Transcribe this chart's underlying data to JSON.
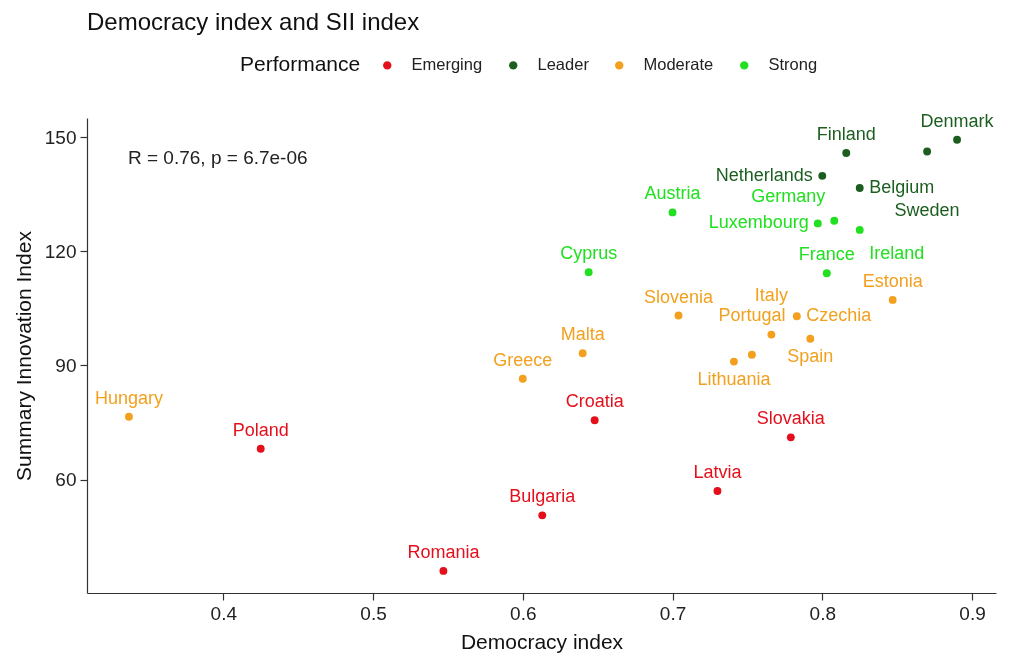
{
  "chart_data": {
    "type": "scatter",
    "title": "Democracy index and SII index",
    "xlabel": "Democracy index",
    "ylabel": "Summary Innovation Index",
    "legend_title": "Performance",
    "legend": "top",
    "marker": "circle",
    "xlim": [
      0.309,
      0.916
    ],
    "xticks": [
      0.4,
      0.5,
      0.6,
      0.7,
      0.8,
      0.9
    ],
    "ylim": [
      30.2,
      155
    ],
    "yticks": [
      60,
      90,
      120,
      150
    ],
    "series": [
      {
        "name": "Emerging",
        "color": "#e3101c",
        "x": [
          0.425,
          0.547,
          0.613,
          0.648,
          0.73,
          0.779
        ],
        "values": [
          68.1,
          36.0,
          50.6,
          75.6,
          57.0,
          71.1
        ]
      },
      {
        "name": "Leader",
        "color": "#1b5e20",
        "x": [
          0.8,
          0.816,
          0.825,
          0.87,
          0.89
        ],
        "values": [
          139.8,
          145.8,
          136.6,
          146.2,
          149.3
        ]
      },
      {
        "name": "Moderate",
        "color": "#f2a01e",
        "x": [
          0.337,
          0.6,
          0.64,
          0.704,
          0.741,
          0.753,
          0.766,
          0.783,
          0.792,
          0.847
        ],
        "values": [
          76.5,
          86.5,
          93.2,
          103.1,
          91.0,
          92.8,
          98.1,
          102.9,
          97.0,
          107.2
        ]
      },
      {
        "name": "Strong",
        "color": "#20e020",
        "x": [
          0.7,
          0.644,
          0.797,
          0.808,
          0.803,
          0.825
        ],
        "values": [
          130.2,
          114.5,
          127.3,
          128.0,
          114.2,
          125.6
        ]
      }
    ],
    "annotations": [
      "R = 0.76, p = 6.7e-06",
      {
        "text": "Poland",
        "x": 0.425,
        "y": 68.1
      },
      {
        "text": "Romania",
        "x": 0.547,
        "y": 36.0
      },
      {
        "text": "Bulgaria",
        "x": 0.613,
        "y": 50.6
      },
      {
        "text": "Croatia",
        "x": 0.648,
        "y": 75.6
      },
      {
        "text": "Latvia",
        "x": 0.73,
        "y": 57.0
      },
      {
        "text": "Slovakia",
        "x": 0.779,
        "y": 71.1
      },
      {
        "text": "Netherlands",
        "x": 0.8,
        "y": 139.8
      },
      {
        "text": "Finland",
        "x": 0.816,
        "y": 145.8
      },
      {
        "text": "Belgium",
        "x": 0.825,
        "y": 136.6
      },
      {
        "text": "Sweden",
        "x": 0.87,
        "y": 146.2
      },
      {
        "text": "Denmark",
        "x": 0.89,
        "y": 149.3
      },
      {
        "text": "Hungary",
        "x": 0.337,
        "y": 76.5
      },
      {
        "text": "Greece",
        "x": 0.6,
        "y": 86.5
      },
      {
        "text": "Malta",
        "x": 0.64,
        "y": 93.2
      },
      {
        "text": "Slovenia",
        "x": 0.704,
        "y": 103.1
      },
      {
        "text": "Lithuania",
        "x": 0.741,
        "y": 91.0
      },
      {
        "text": "Portugal",
        "x": 0.753,
        "y": 92.8
      },
      {
        "text": "Italy",
        "x": 0.766,
        "y": 98.1
      },
      {
        "text": "Czechia",
        "x": 0.783,
        "y": 102.9
      },
      {
        "text": "Spain",
        "x": 0.792,
        "y": 97.0
      },
      {
        "text": "Estonia",
        "x": 0.847,
        "y": 107.2
      },
      {
        "text": "Austria",
        "x": 0.7,
        "y": 130.2
      },
      {
        "text": "Cyprus",
        "x": 0.644,
        "y": 114.5
      },
      {
        "text": "Luxembourg",
        "x": 0.797,
        "y": 127.3
      },
      {
        "text": "Germany",
        "x": 0.808,
        "y": 128.0
      },
      {
        "text": "France",
        "x": 0.803,
        "y": 114.2
      },
      {
        "text": "Ireland",
        "x": 0.825,
        "y": 125.6
      }
    ]
  }
}
